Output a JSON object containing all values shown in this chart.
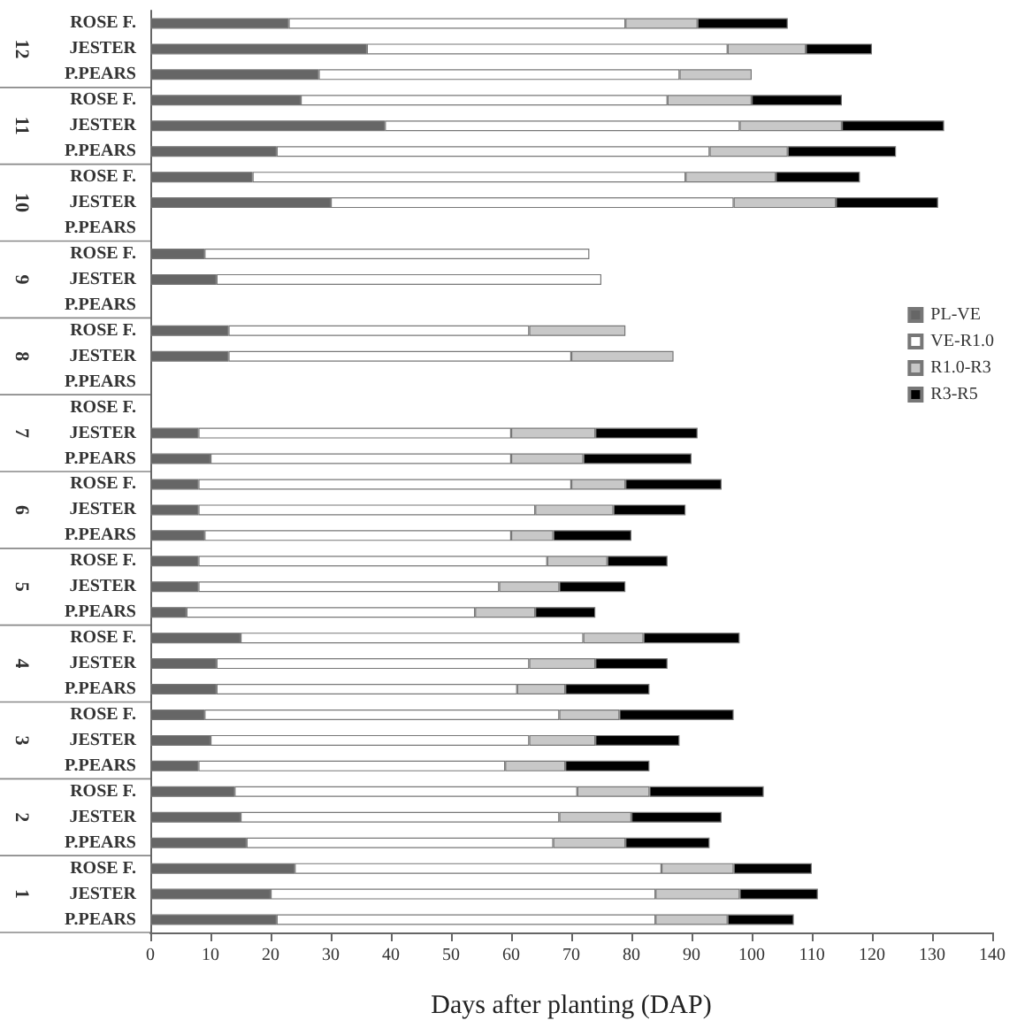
{
  "chart_data": {
    "type": "bar",
    "orientation": "horizontal",
    "stacked": true,
    "categories": [
      "ROSE F.",
      "JESTER",
      "P.PEARS",
      "ROSE F.",
      "JESTER",
      "P.PEARS",
      "ROSE F.",
      "JESTER",
      "P.PEARS",
      "ROSE F.",
      "JESTER",
      "P.PEARS",
      "ROSE F.",
      "JESTER",
      "P.PEARS",
      "ROSE F.",
      "JESTER",
      "P.PEARS",
      "ROSE F.",
      "JESTER",
      "P.PEARS",
      "ROSE F.",
      "JESTER",
      "P.PEARS",
      "ROSE F.",
      "JESTER",
      "P.PEARS",
      "ROSE F.",
      "JESTER",
      "P.PEARS",
      "ROSE F.",
      "JESTER",
      "P.PEARS",
      "ROSE F.",
      "JESTER",
      "P.PEARS"
    ],
    "series": [
      {
        "name": "PL-VE",
        "color": "#666666",
        "values": [
          23,
          36,
          28,
          25,
          39,
          21,
          17,
          30,
          null,
          9,
          11,
          null,
          13,
          13,
          null,
          null,
          8,
          10,
          8,
          8,
          9,
          8,
          8,
          6,
          15,
          11,
          11,
          9,
          10,
          8,
          14,
          15,
          16,
          24,
          20,
          21
        ]
      },
      {
        "name": "VE-R1.0",
        "color": "#ffffff",
        "values": [
          56,
          60,
          60,
          61,
          59,
          72,
          72,
          67,
          null,
          64,
          64,
          null,
          50,
          57,
          null,
          null,
          52,
          50,
          62,
          56,
          51,
          58,
          50,
          48,
          57,
          52,
          50,
          59,
          53,
          51,
          57,
          53,
          51,
          61,
          64,
          63
        ]
      },
      {
        "name": "R1.0-R3",
        "color": "#c8c8c8",
        "values": [
          12,
          13,
          12,
          14,
          17,
          13,
          15,
          17,
          null,
          null,
          null,
          null,
          16,
          17,
          null,
          null,
          14,
          12,
          9,
          13,
          7,
          10,
          10,
          10,
          10,
          11,
          8,
          10,
          11,
          10,
          12,
          12,
          12,
          12,
          14,
          12
        ]
      },
      {
        "name": "R3-R5",
        "color": "#000000",
        "values": [
          15,
          11,
          null,
          15,
          17,
          18,
          14,
          17,
          null,
          null,
          null,
          null,
          null,
          null,
          null,
          null,
          17,
          18,
          16,
          12,
          13,
          10,
          11,
          10,
          16,
          12,
          14,
          19,
          14,
          14,
          19,
          15,
          14,
          13,
          13,
          11
        ]
      }
    ],
    "xlim": [
      0,
      140
    ],
    "xticks": [
      0,
      10,
      20,
      30,
      40,
      50,
      60,
      70,
      80,
      90,
      100,
      110,
      120,
      130,
      140
    ],
    "xlabel": "Days after planting (DAP)",
    "annotations": [
      "12",
      "11",
      "10",
      "9",
      "8",
      "7",
      "6",
      "5",
      "4",
      "3",
      "2",
      "1"
    ],
    "legend": "right",
    "grid": false
  }
}
